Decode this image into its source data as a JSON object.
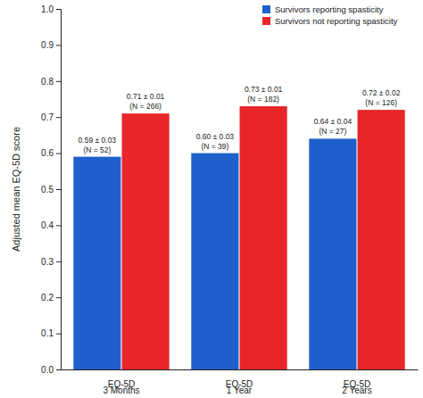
{
  "chart_data": {
    "type": "bar",
    "y_label": "Adjusted mean EQ-5D score",
    "categories": [
      "EQ-5D\n3 Months",
      "EQ-5D\n1 Year",
      "EQ-5D\n2 Years"
    ],
    "series": [
      {
        "name": "Survivors reporting spasticity",
        "color": "#1f5fcc",
        "values": [
          0.59,
          0.6,
          0.64
        ],
        "value_labels": [
          [
            "0.59 ± 0.03",
            "(N = 52)"
          ],
          [
            "0.60 ± 0.03",
            "(N = 39)"
          ],
          [
            "0.64 ± 0.04",
            "(N = 27)"
          ]
        ]
      },
      {
        "name": "Survivors not reporting spasticity",
        "color": "#e8262a",
        "values": [
          0.71,
          0.73,
          0.72
        ],
        "value_labels": [
          [
            "0.71 ± 0.01",
            "(N = 266)"
          ],
          [
            "0.73 ± 0.01",
            "(N = 182)"
          ],
          [
            "0.72 ± 0.02",
            "(N = 126)"
          ]
        ]
      }
    ],
    "ylim": [
      0,
      1
    ],
    "yticks": [
      {
        "value": 0,
        "label": "0.0"
      },
      0.1,
      0.2,
      0.3,
      0.4,
      0.5,
      0.6,
      0.7,
      0.8,
      0.9,
      {
        "value": 1,
        "label": "1.0"
      }
    ],
    "grid": false,
    "legend": "upper right",
    "data_labels": true
  }
}
